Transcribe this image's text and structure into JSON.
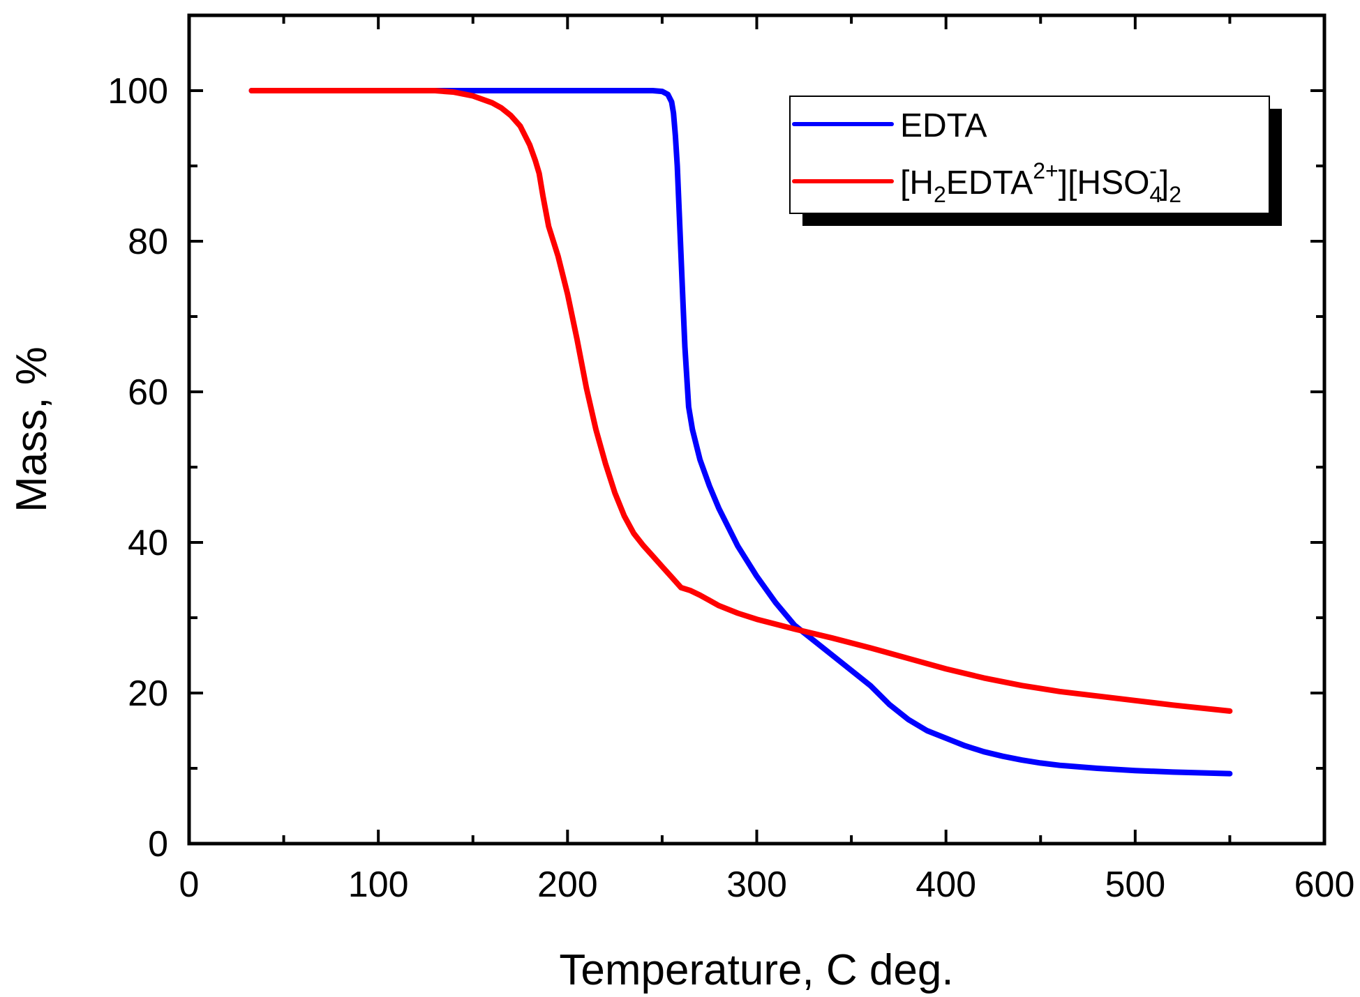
{
  "chart_data": {
    "type": "line",
    "title": "",
    "xlabel": "Temperature, C deg.",
    "ylabel": "Mass, %",
    "xlim": [
      0,
      600
    ],
    "ylim": [
      0,
      110
    ],
    "x_ticks": [
      "0",
      "100",
      "200",
      "300",
      "400",
      "500",
      "600"
    ],
    "y_ticks": [
      "0",
      "20",
      "40",
      "60",
      "80",
      "100"
    ],
    "grid": false,
    "legend_position": "top-right",
    "legend": {
      "edta": {
        "text": "EDTA"
      },
      "salt": {
        "open_bracket": "[H",
        "sub_2": "2",
        "edta": "EDTA",
        "sup_charge": "2+",
        "mid": "][HSO",
        "sub_4": "4",
        "sup_minus": "-",
        "close": "]",
        "sub_final": "2"
      }
    },
    "series": [
      {
        "name": "EDTA",
        "color": "#0000ff",
        "x": [
          33,
          60,
          100,
          130,
          150,
          170,
          190,
          210,
          230,
          245,
          250,
          253,
          255,
          256,
          257,
          258,
          259,
          260,
          261,
          262,
          264,
          266,
          268,
          270,
          275,
          280,
          290,
          300,
          310,
          320,
          330,
          340,
          350,
          360,
          370,
          380,
          390,
          400,
          410,
          420,
          430,
          440,
          450,
          460,
          480,
          500,
          520,
          550
        ],
        "y": [
          100,
          100,
          100,
          100,
          100,
          100,
          100,
          100,
          100,
          100,
          99.9,
          99.5,
          98.5,
          97,
          94,
          90,
          84,
          78,
          72,
          66,
          58,
          55,
          53,
          51,
          47.5,
          44.5,
          39.5,
          35.5,
          32,
          29,
          27,
          25,
          23,
          21,
          18.5,
          16.5,
          15,
          14,
          13,
          12.2,
          11.6,
          11.1,
          10.7,
          10.4,
          10,
          9.7,
          9.5,
          9.3
        ]
      },
      {
        "name": "[H2EDTA2+][HSO4-]2",
        "color": "#ff0000",
        "x": [
          33,
          60,
          100,
          130,
          140,
          150,
          160,
          165,
          170,
          175,
          180,
          183,
          185,
          187,
          190,
          195,
          200,
          205,
          210,
          215,
          220,
          225,
          230,
          235,
          240,
          245,
          250,
          255,
          260,
          265,
          270,
          280,
          290,
          300,
          320,
          340,
          360,
          380,
          400,
          420,
          440,
          460,
          480,
          500,
          520,
          550
        ],
        "y": [
          100,
          100,
          100,
          100,
          99.8,
          99.3,
          98.4,
          97.7,
          96.7,
          95.3,
          92.8,
          90.7,
          89,
          86,
          82,
          78,
          73,
          67,
          60.5,
          55,
          50.5,
          46.6,
          43.5,
          41.2,
          39.6,
          38.2,
          36.8,
          35.4,
          34,
          33.6,
          33,
          31.6,
          30.6,
          29.8,
          28.5,
          27.3,
          26,
          24.6,
          23.2,
          22,
          21,
          20.2,
          19.6,
          19,
          18.4,
          17.6
        ]
      }
    ]
  }
}
